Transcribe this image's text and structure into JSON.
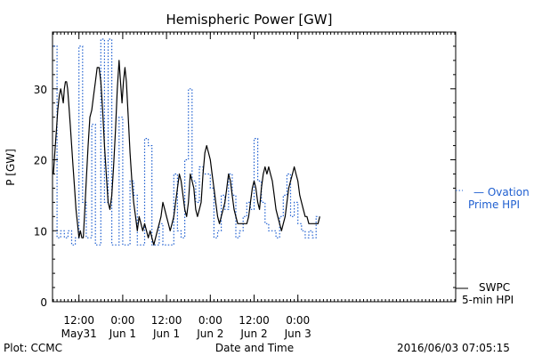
{
  "colors": {
    "swpc": "#000000",
    "ovation": "#1f5fd0",
    "axis": "#000000",
    "background": "#ffffff"
  },
  "chart_data": {
    "type": "line",
    "title": "Hemispheric Power [GW]",
    "xlabel": "Date and Time",
    "ylabel": "P [GW]",
    "ylim": [
      0,
      38
    ],
    "xlim_hours": [
      0,
      110
    ],
    "grid": false,
    "y_ticks": [
      {
        "value": 0,
        "label": "0"
      },
      {
        "value": 10,
        "label": "10"
      },
      {
        "value": 20,
        "label": "20"
      },
      {
        "value": 30,
        "label": "30"
      }
    ],
    "x_ticks": [
      {
        "hour": 7,
        "time": "12:00",
        "date": "May31"
      },
      {
        "hour": 19,
        "time": "0:00",
        "date": "Jun 1"
      },
      {
        "hour": 31,
        "time": "12:00",
        "date": "Jun 1"
      },
      {
        "hour": 43,
        "time": "0:00",
        "date": "Jun 2"
      },
      {
        "hour": 55,
        "time": "12:00",
        "date": "Jun 2"
      },
      {
        "hour": 67,
        "time": "0:00",
        "date": "Jun 3"
      }
    ],
    "series": [
      {
        "name": "SWPC 5-min HPI",
        "legend_lines": [
          "SWPC",
          "5-min HPI"
        ],
        "style": "solid",
        "points": [
          [
            0.0,
            18
          ],
          [
            0.4,
            21
          ],
          [
            0.8,
            24
          ],
          [
            1.2,
            27
          ],
          [
            1.6,
            29
          ],
          [
            2.0,
            30
          ],
          [
            2.4,
            29
          ],
          [
            2.7,
            28
          ],
          [
            3.0,
            30
          ],
          [
            3.3,
            31
          ],
          [
            3.6,
            31
          ],
          [
            3.9,
            30
          ],
          [
            4.2,
            28
          ],
          [
            4.6,
            25
          ],
          [
            5.0,
            22
          ],
          [
            5.4,
            19
          ],
          [
            5.8,
            16
          ],
          [
            6.2,
            13
          ],
          [
            6.6,
            11
          ],
          [
            7.0,
            9
          ],
          [
            7.4,
            10
          ],
          [
            7.8,
            9
          ],
          [
            8.2,
            9
          ],
          [
            8.6,
            13
          ],
          [
            9.0,
            17
          ],
          [
            9.5,
            22
          ],
          [
            10.0,
            26
          ],
          [
            10.5,
            27
          ],
          [
            11.0,
            29
          ],
          [
            11.5,
            31
          ],
          [
            12.0,
            33
          ],
          [
            12.5,
            33
          ],
          [
            13.0,
            31
          ],
          [
            13.5,
            27
          ],
          [
            14.0,
            22
          ],
          [
            14.5,
            18
          ],
          [
            15.0,
            14
          ],
          [
            15.5,
            13
          ],
          [
            16.0,
            15
          ],
          [
            16.5,
            19
          ],
          [
            17.0,
            24
          ],
          [
            17.5,
            30
          ],
          [
            18.0,
            34
          ],
          [
            18.4,
            31
          ],
          [
            18.8,
            28
          ],
          [
            19.2,
            31
          ],
          [
            19.6,
            33
          ],
          [
            20.0,
            31
          ],
          [
            20.5,
            26
          ],
          [
            21.0,
            21
          ],
          [
            21.5,
            17
          ],
          [
            22.0,
            14
          ],
          [
            22.5,
            12
          ],
          [
            23.0,
            10
          ],
          [
            23.5,
            12
          ],
          [
            24.0,
            11
          ],
          [
            24.5,
            10
          ],
          [
            25.0,
            11
          ],
          [
            25.5,
            10
          ],
          [
            26.0,
            9
          ],
          [
            26.5,
            10
          ],
          [
            27.0,
            9
          ],
          [
            27.5,
            8
          ],
          [
            28.0,
            9
          ],
          [
            28.5,
            10
          ],
          [
            29.0,
            11
          ],
          [
            29.5,
            12
          ],
          [
            30.0,
            14
          ],
          [
            30.5,
            13
          ],
          [
            31.0,
            12
          ],
          [
            31.5,
            11
          ],
          [
            32.0,
            10
          ],
          [
            32.5,
            11
          ],
          [
            33.0,
            12
          ],
          [
            33.5,
            14
          ],
          [
            34.0,
            16
          ],
          [
            34.5,
            18
          ],
          [
            35.0,
            17
          ],
          [
            35.5,
            15
          ],
          [
            36.0,
            13
          ],
          [
            36.5,
            12
          ],
          [
            37.0,
            14
          ],
          [
            37.5,
            18
          ],
          [
            38.0,
            17
          ],
          [
            38.5,
            16
          ],
          [
            39.0,
            13
          ],
          [
            39.5,
            12
          ],
          [
            40.0,
            13
          ],
          [
            40.5,
            14
          ],
          [
            41.0,
            18
          ],
          [
            41.5,
            21
          ],
          [
            42.0,
            22
          ],
          [
            42.5,
            21
          ],
          [
            43.0,
            20
          ],
          [
            43.5,
            18
          ],
          [
            44.0,
            16
          ],
          [
            44.5,
            14
          ],
          [
            45.0,
            12
          ],
          [
            45.5,
            11
          ],
          [
            46.0,
            12
          ],
          [
            46.5,
            13
          ],
          [
            47.0,
            14
          ],
          [
            47.5,
            16
          ],
          [
            48.0,
            18
          ],
          [
            48.5,
            17
          ],
          [
            49.0,
            15
          ],
          [
            49.5,
            13
          ],
          [
            50.0,
            12
          ],
          [
            50.5,
            11
          ],
          [
            51.0,
            11
          ],
          [
            51.5,
            11
          ],
          [
            52.0,
            11
          ],
          [
            52.5,
            11
          ],
          [
            53.0,
            11
          ],
          [
            53.5,
            12
          ],
          [
            54.0,
            14
          ],
          [
            54.5,
            16
          ],
          [
            55.0,
            17
          ],
          [
            55.5,
            16
          ],
          [
            56.0,
            14
          ],
          [
            56.5,
            13
          ],
          [
            57.0,
            16
          ],
          [
            57.5,
            18
          ],
          [
            58.0,
            19
          ],
          [
            58.5,
            18
          ],
          [
            59.0,
            19
          ],
          [
            59.5,
            18
          ],
          [
            60.0,
            17
          ],
          [
            60.5,
            15
          ],
          [
            61.0,
            13
          ],
          [
            61.5,
            12
          ],
          [
            62.0,
            11
          ],
          [
            62.5,
            10
          ],
          [
            63.0,
            11
          ],
          [
            63.5,
            12
          ],
          [
            64.0,
            14
          ],
          [
            64.5,
            16
          ],
          [
            65.0,
            17
          ],
          [
            65.5,
            18
          ],
          [
            66.0,
            19
          ],
          [
            66.5,
            18
          ],
          [
            67.0,
            17
          ],
          [
            67.5,
            15
          ],
          [
            68.0,
            14
          ],
          [
            68.5,
            13
          ],
          [
            69.0,
            12
          ],
          [
            69.5,
            12
          ],
          [
            70.0,
            11
          ],
          [
            70.5,
            11
          ],
          [
            71.0,
            11
          ],
          [
            71.5,
            11
          ],
          [
            72.0,
            11
          ],
          [
            72.5,
            11
          ],
          [
            73.0,
            12
          ]
        ]
      },
      {
        "name": "Ovation Prime HPI",
        "legend_lines": [
          "— Ovation",
          "Prime HPI"
        ],
        "style": "dotted",
        "steps": [
          [
            0.0,
            1.0,
            36
          ],
          [
            1.0,
            2.0,
            9
          ],
          [
            2.0,
            3.0,
            10
          ],
          [
            3.0,
            4.0,
            9
          ],
          [
            4.0,
            5.0,
            10
          ],
          [
            5.0,
            6.0,
            8
          ],
          [
            6.0,
            7.0,
            9
          ],
          [
            7.0,
            8.0,
            36
          ],
          [
            8.0,
            9.0,
            14
          ],
          [
            9.0,
            10.5,
            9
          ],
          [
            10.5,
            11.5,
            25
          ],
          [
            11.5,
            13.0,
            8
          ],
          [
            13.0,
            14.0,
            37
          ],
          [
            14.0,
            15.0,
            14
          ],
          [
            15.0,
            16.0,
            37
          ],
          [
            16.0,
            18.0,
            8
          ],
          [
            18.0,
            19.0,
            26
          ],
          [
            19.0,
            21.0,
            8
          ],
          [
            21.0,
            22.0,
            17
          ],
          [
            22.0,
            23.0,
            15
          ],
          [
            23.0,
            25.0,
            8
          ],
          [
            25.0,
            26.0,
            23
          ],
          [
            26.0,
            27.0,
            22
          ],
          [
            27.0,
            29.0,
            8
          ],
          [
            29.0,
            30.0,
            11
          ],
          [
            30.0,
            33.0,
            8
          ],
          [
            33.0,
            34.0,
            18
          ],
          [
            34.0,
            35.0,
            10
          ],
          [
            35.0,
            36.0,
            9
          ],
          [
            36.0,
            37.0,
            20
          ],
          [
            37.0,
            38.0,
            30
          ],
          [
            38.0,
            39.0,
            17
          ],
          [
            39.0,
            40.0,
            14
          ],
          [
            40.0,
            41.0,
            19
          ],
          [
            41.0,
            43.0,
            18
          ],
          [
            43.0,
            44.0,
            16
          ],
          [
            44.0,
            45.0,
            9
          ],
          [
            45.0,
            46.0,
            10
          ],
          [
            46.0,
            47.0,
            15
          ],
          [
            47.0,
            48.0,
            13
          ],
          [
            48.0,
            49.0,
            18
          ],
          [
            49.0,
            50.0,
            15
          ],
          [
            50.0,
            51.0,
            9
          ],
          [
            51.0,
            52.0,
            10
          ],
          [
            52.0,
            53.0,
            12
          ],
          [
            53.0,
            54.0,
            14
          ],
          [
            54.0,
            55.0,
            13
          ],
          [
            55.0,
            56.0,
            23
          ],
          [
            56.0,
            57.0,
            17
          ],
          [
            57.0,
            58.0,
            14
          ],
          [
            58.0,
            59.0,
            11
          ],
          [
            59.0,
            60.0,
            10
          ],
          [
            60.0,
            61.0,
            10
          ],
          [
            61.0,
            62.0,
            9
          ],
          [
            62.0,
            63.0,
            12
          ],
          [
            63.0,
            64.0,
            15
          ],
          [
            64.0,
            65.0,
            18
          ],
          [
            65.0,
            66.0,
            12
          ],
          [
            66.0,
            67.0,
            14
          ],
          [
            67.0,
            68.0,
            11
          ],
          [
            68.0,
            69.0,
            10
          ],
          [
            69.0,
            70.0,
            9
          ],
          [
            70.0,
            71.0,
            10
          ],
          [
            71.0,
            72.0,
            9
          ],
          [
            72.0,
            73.0,
            12
          ]
        ]
      }
    ]
  },
  "footer": {
    "plot_credit": "Plot: CCMC",
    "timestamp": "2016/06/03 07:05:15"
  }
}
